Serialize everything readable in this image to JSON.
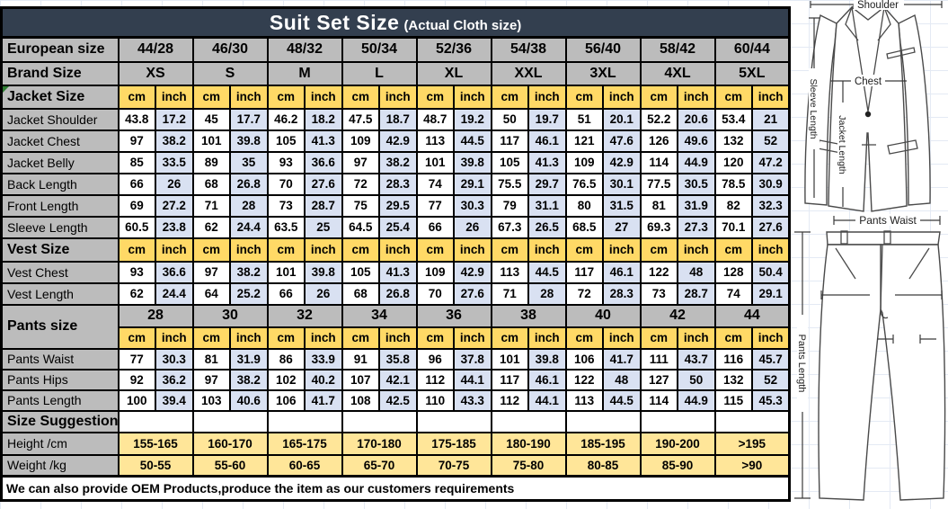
{
  "title": {
    "main": "Suit Set Size",
    "sub": "(Actual Cloth size)"
  },
  "units": {
    "cm": "cm",
    "inch": "inch"
  },
  "european": {
    "label": "European size",
    "sizes": [
      "44/28",
      "46/30",
      "48/32",
      "50/34",
      "52/36",
      "54/38",
      "56/40",
      "58/42",
      "60/44"
    ]
  },
  "brand": {
    "label": "Brand Size",
    "sizes": [
      "XS",
      "S",
      "M",
      "L",
      "XL",
      "XXL",
      "3XL",
      "4XL",
      "5XL"
    ]
  },
  "jacket": {
    "section_label": "Jacket Size",
    "rows": [
      {
        "label": "Jacket Shoulder",
        "values": [
          "43.8",
          "17.2",
          "45",
          "17.7",
          "46.2",
          "18.2",
          "47.5",
          "18.7",
          "48.7",
          "19.2",
          "50",
          "19.7",
          "51",
          "20.1",
          "52.2",
          "20.6",
          "53.4",
          "21"
        ]
      },
      {
        "label": "Jacket Chest",
        "values": [
          "97",
          "38.2",
          "101",
          "39.8",
          "105",
          "41.3",
          "109",
          "42.9",
          "113",
          "44.5",
          "117",
          "46.1",
          "121",
          "47.6",
          "126",
          "49.6",
          "132",
          "52"
        ]
      },
      {
        "label": "Jacket Belly",
        "values": [
          "85",
          "33.5",
          "89",
          "35",
          "93",
          "36.6",
          "97",
          "38.2",
          "101",
          "39.8",
          "105",
          "41.3",
          "109",
          "42.9",
          "114",
          "44.9",
          "120",
          "47.2"
        ]
      },
      {
        "label": "Back Length",
        "values": [
          "66",
          "26",
          "68",
          "26.8",
          "70",
          "27.6",
          "72",
          "28.3",
          "74",
          "29.1",
          "75.5",
          "29.7",
          "76.5",
          "30.1",
          "77.5",
          "30.5",
          "78.5",
          "30.9"
        ]
      },
      {
        "label": "Front Length",
        "values": [
          "69",
          "27.2",
          "71",
          "28",
          "73",
          "28.7",
          "75",
          "29.5",
          "77",
          "30.3",
          "79",
          "31.1",
          "80",
          "31.5",
          "81",
          "31.9",
          "82",
          "32.3"
        ]
      },
      {
        "label": "Sleeve Length",
        "values": [
          "60.5",
          "23.8",
          "62",
          "24.4",
          "63.5",
          "25",
          "64.5",
          "25.4",
          "66",
          "26",
          "67.3",
          "26.5",
          "68.5",
          "27",
          "69.3",
          "27.3",
          "70.1",
          "27.6"
        ]
      }
    ]
  },
  "vest": {
    "section_label": "Vest Size",
    "rows": [
      {
        "label": "Vest Chest",
        "values": [
          "93",
          "36.6",
          "97",
          "38.2",
          "101",
          "39.8",
          "105",
          "41.3",
          "109",
          "42.9",
          "113",
          "44.5",
          "117",
          "46.1",
          "122",
          "48",
          "128",
          "50.4"
        ]
      },
      {
        "label": "Vest Length",
        "values": [
          "62",
          "24.4",
          "64",
          "25.2",
          "66",
          "26",
          "68",
          "26.8",
          "70",
          "27.6",
          "71",
          "28",
          "72",
          "28.3",
          "73",
          "28.7",
          "74",
          "29.1"
        ]
      }
    ]
  },
  "pants": {
    "section_label": "Pants size",
    "sizes": [
      "28",
      "30",
      "32",
      "34",
      "36",
      "38",
      "40",
      "42",
      "44"
    ],
    "rows": [
      {
        "label": "Pants Waist",
        "values": [
          "77",
          "30.3",
          "81",
          "31.9",
          "86",
          "33.9",
          "91",
          "35.8",
          "96",
          "37.8",
          "101",
          "39.8",
          "106",
          "41.7",
          "111",
          "43.7",
          "116",
          "45.7"
        ]
      },
      {
        "label": "Pants Hips",
        "values": [
          "92",
          "36.2",
          "97",
          "38.2",
          "102",
          "40.2",
          "107",
          "42.1",
          "112",
          "44.1",
          "117",
          "46.1",
          "122",
          "48",
          "127",
          "50",
          "132",
          "52"
        ]
      },
      {
        "label": "Pants Length",
        "values": [
          "100",
          "39.4",
          "103",
          "40.6",
          "106",
          "41.7",
          "108",
          "42.5",
          "110",
          "43.3",
          "112",
          "44.1",
          "113",
          "44.5",
          "114",
          "44.9",
          "115",
          "45.3"
        ]
      }
    ]
  },
  "suggestion": {
    "section_label": "Size Suggestion",
    "rows": [
      {
        "label": "Height /cm",
        "values": [
          "155-165",
          "160-170",
          "165-175",
          "170-180",
          "175-185",
          "180-190",
          "185-195",
          "190-200",
          ">195"
        ]
      },
      {
        "label": "Weight /kg",
        "values": [
          "50-55",
          "55-60",
          "60-65",
          "65-70",
          "70-75",
          "75-80",
          "80-85",
          "85-90",
          ">90"
        ]
      }
    ]
  },
  "footer": {
    "text": "We can also provide OEM Products,produce the item as our customers requirements"
  },
  "diagram": {
    "labels": {
      "shoulder": "Shoulder",
      "chest": "Chest",
      "sleeve_length": "Sleeve Length",
      "jacket_length": "Jacket Length",
      "pants_waist": "Pants Waist",
      "pants_length": "Pants Length"
    }
  },
  "colors": {
    "header_bg": "#333F4F",
    "label_bg": "#BCBCBC",
    "unit_bg": "#FFD966",
    "inch_bg": "#D9E1F2",
    "range_bg": "#FFE699"
  }
}
